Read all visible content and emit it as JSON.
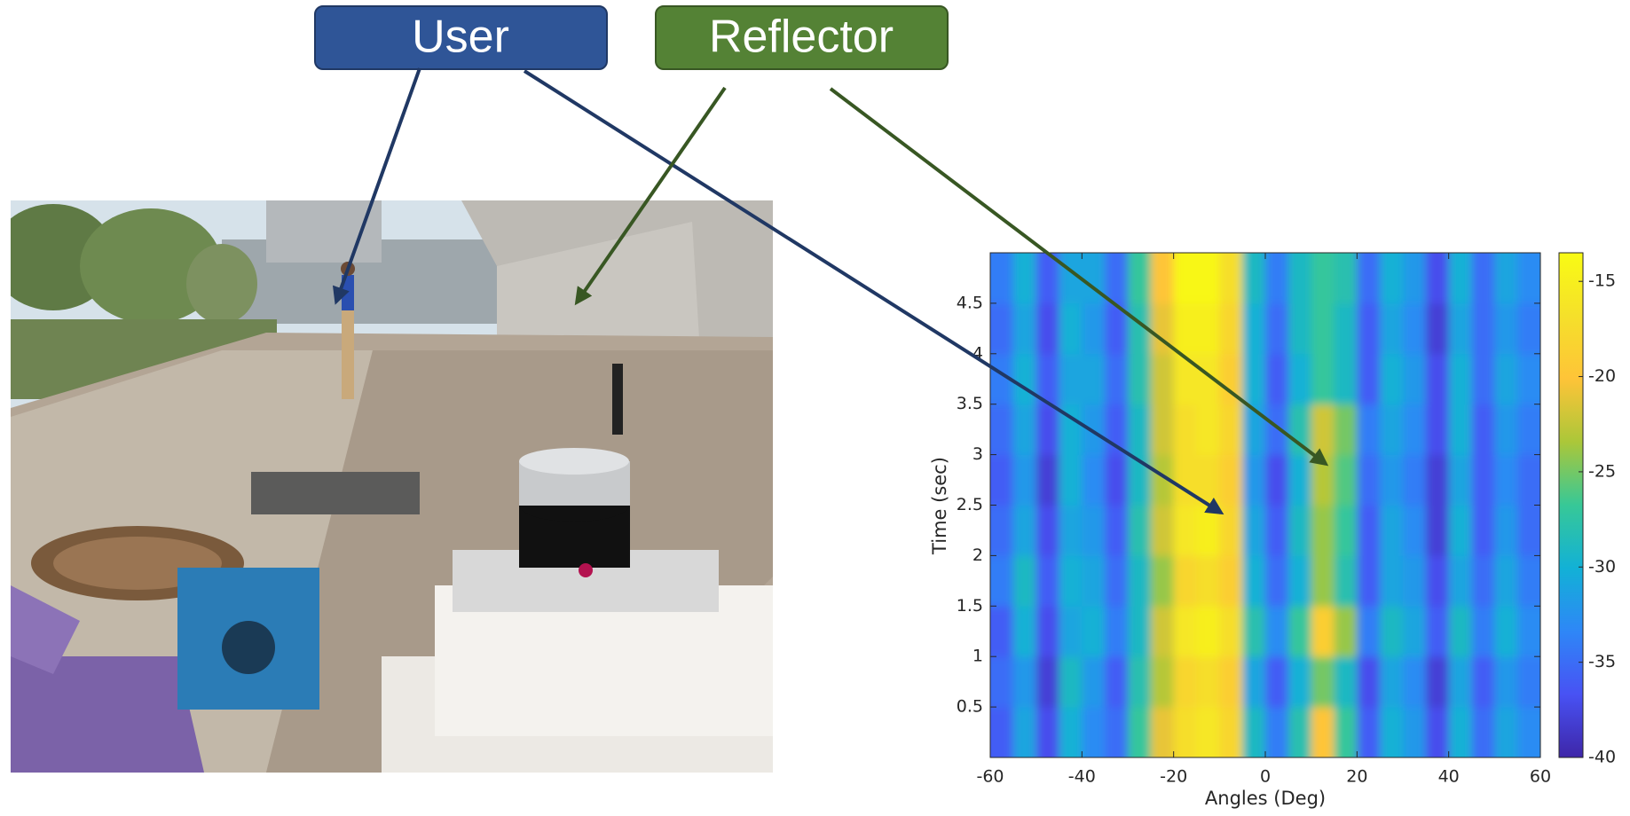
{
  "chart_data": {
    "type": "heatmap",
    "x_label": "Angles (Deg)",
    "y_label": "Time (sec)",
    "x": [
      -57.5,
      -52.5,
      -47.5,
      -42.5,
      -37.5,
      -32.5,
      -27.5,
      -22.5,
      -17.5,
      -12.5,
      -7.5,
      -2.5,
      2.5,
      7.5,
      12.5,
      17.5,
      22.5,
      27.5,
      32.5,
      37.5,
      42.5,
      47.5,
      52.5,
      57.5
    ],
    "y": [
      0.25,
      0.75,
      1.25,
      1.75,
      2.25,
      2.75,
      3.25,
      3.75,
      4.25,
      4.75
    ],
    "values": [
      [
        -36,
        -31,
        -37,
        -30,
        -33,
        -35,
        -27,
        -21,
        -17,
        -16,
        -18,
        -29,
        -34,
        -28,
        -20,
        -27,
        -36,
        -30,
        -32,
        -37,
        -30,
        -35,
        -31,
        -33
      ],
      [
        -35,
        -32,
        -38,
        -29,
        -32,
        -36,
        -28,
        -23,
        -18,
        -17,
        -19,
        -31,
        -36,
        -30,
        -25,
        -29,
        -37,
        -31,
        -33,
        -38,
        -31,
        -36,
        -32,
        -34
      ],
      [
        -36,
        -30,
        -37,
        -31,
        -30,
        -34,
        -29,
        -22,
        -16,
        -15,
        -17,
        -28,
        -33,
        -27,
        -19,
        -24,
        -34,
        -29,
        -31,
        -36,
        -29,
        -34,
        -30,
        -33
      ],
      [
        -34,
        -29,
        -36,
        -30,
        -31,
        -35,
        -29,
        -24,
        -18,
        -17,
        -19,
        -30,
        -35,
        -30,
        -24,
        -28,
        -36,
        -31,
        -32,
        -37,
        -31,
        -35,
        -31,
        -34
      ],
      [
        -35,
        -31,
        -37,
        -31,
        -32,
        -36,
        -28,
        -22,
        -16,
        -15,
        -18,
        -31,
        -36,
        -29,
        -24,
        -27,
        -36,
        -31,
        -33,
        -38,
        -30,
        -36,
        -32,
        -35
      ],
      [
        -36,
        -32,
        -38,
        -30,
        -33,
        -37,
        -29,
        -23,
        -17,
        -17,
        -19,
        -32,
        -37,
        -30,
        -23,
        -26,
        -35,
        -32,
        -34,
        -38,
        -31,
        -36,
        -33,
        -35
      ],
      [
        -35,
        -31,
        -37,
        -30,
        -32,
        -36,
        -29,
        -22,
        -17,
        -16,
        -18,
        -31,
        -35,
        -28,
        -22,
        -25,
        -34,
        -31,
        -33,
        -37,
        -30,
        -36,
        -32,
        -34
      ],
      [
        -34,
        -30,
        -36,
        -31,
        -31,
        -35,
        -28,
        -22,
        -16,
        -16,
        -19,
        -30,
        -36,
        -30,
        -27,
        -29,
        -36,
        -30,
        -32,
        -37,
        -30,
        -35,
        -31,
        -33
      ],
      [
        -35,
        -31,
        -37,
        -30,
        -32,
        -36,
        -28,
        -21,
        -15,
        -15,
        -18,
        -30,
        -35,
        -29,
        -27,
        -29,
        -36,
        -31,
        -33,
        -38,
        -31,
        -35,
        -32,
        -34
      ],
      [
        -34,
        -30,
        -36,
        -31,
        -31,
        -35,
        -27,
        -20,
        -14,
        -14,
        -17,
        -29,
        -34,
        -29,
        -27,
        -28,
        -35,
        -30,
        -32,
        -37,
        -30,
        -35,
        -31,
        -33
      ]
    ],
    "xlim": [
      -60,
      60
    ],
    "ylim": [
      0,
      5
    ],
    "xticks": [
      -60,
      -40,
      -20,
      0,
      20,
      40,
      60
    ],
    "yticks": [
      0.5,
      1,
      1.5,
      2,
      2.5,
      3,
      3.5,
      4,
      4.5
    ],
    "colorbar": {
      "clim": [
        -40,
        -13.5
      ],
      "ticks": [
        -15,
        -20,
        -25,
        -30,
        -35,
        -40
      ]
    },
    "annotations": [
      {
        "text": "User",
        "color": "#2f5597"
      },
      {
        "text": "Reflector",
        "color": "#548235"
      }
    ]
  }
}
